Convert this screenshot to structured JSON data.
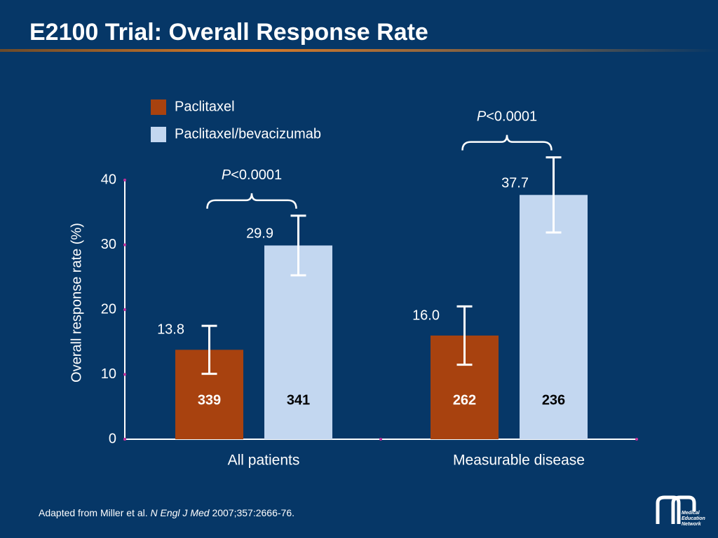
{
  "chart_data": {
    "type": "bar",
    "title": "E2100 Trial: Overall Response Rate",
    "y_label": "Overall response rate (%)",
    "categories": [
      "All patients",
      "Measurable disease"
    ],
    "series": [
      {
        "name": "Paclitaxel",
        "color": "#a8420f",
        "values": [
          13.8,
          16.0
        ],
        "value_labels": [
          "13.8",
          "16.0"
        ],
        "errors": [
          3.7,
          4.5
        ],
        "sample_sizes": [
          339,
          262
        ],
        "sample_color": "#ffffff"
      },
      {
        "name": "Paclitaxel/bevacizumab",
        "color": "#c3d7f0",
        "values": [
          29.9,
          37.7
        ],
        "value_labels": [
          "29.9",
          "37.7"
        ],
        "errors": [
          4.6,
          5.8
        ],
        "sample_sizes": [
          341,
          236
        ],
        "sample_color": "#000000"
      }
    ],
    "p_symbol": "P",
    "p_values": [
      "<0.0001",
      "<0.0001"
    ],
    "ylim": [
      0,
      40
    ],
    "yticks": [
      0,
      10,
      20,
      30,
      40
    ],
    "footnote": {
      "before": "Adapted from Miller et al. ",
      "journal": "N Engl J Med",
      "after": " 2007;357:2666-76."
    },
    "logo": [
      "Medical",
      "Education",
      "Network"
    ]
  }
}
